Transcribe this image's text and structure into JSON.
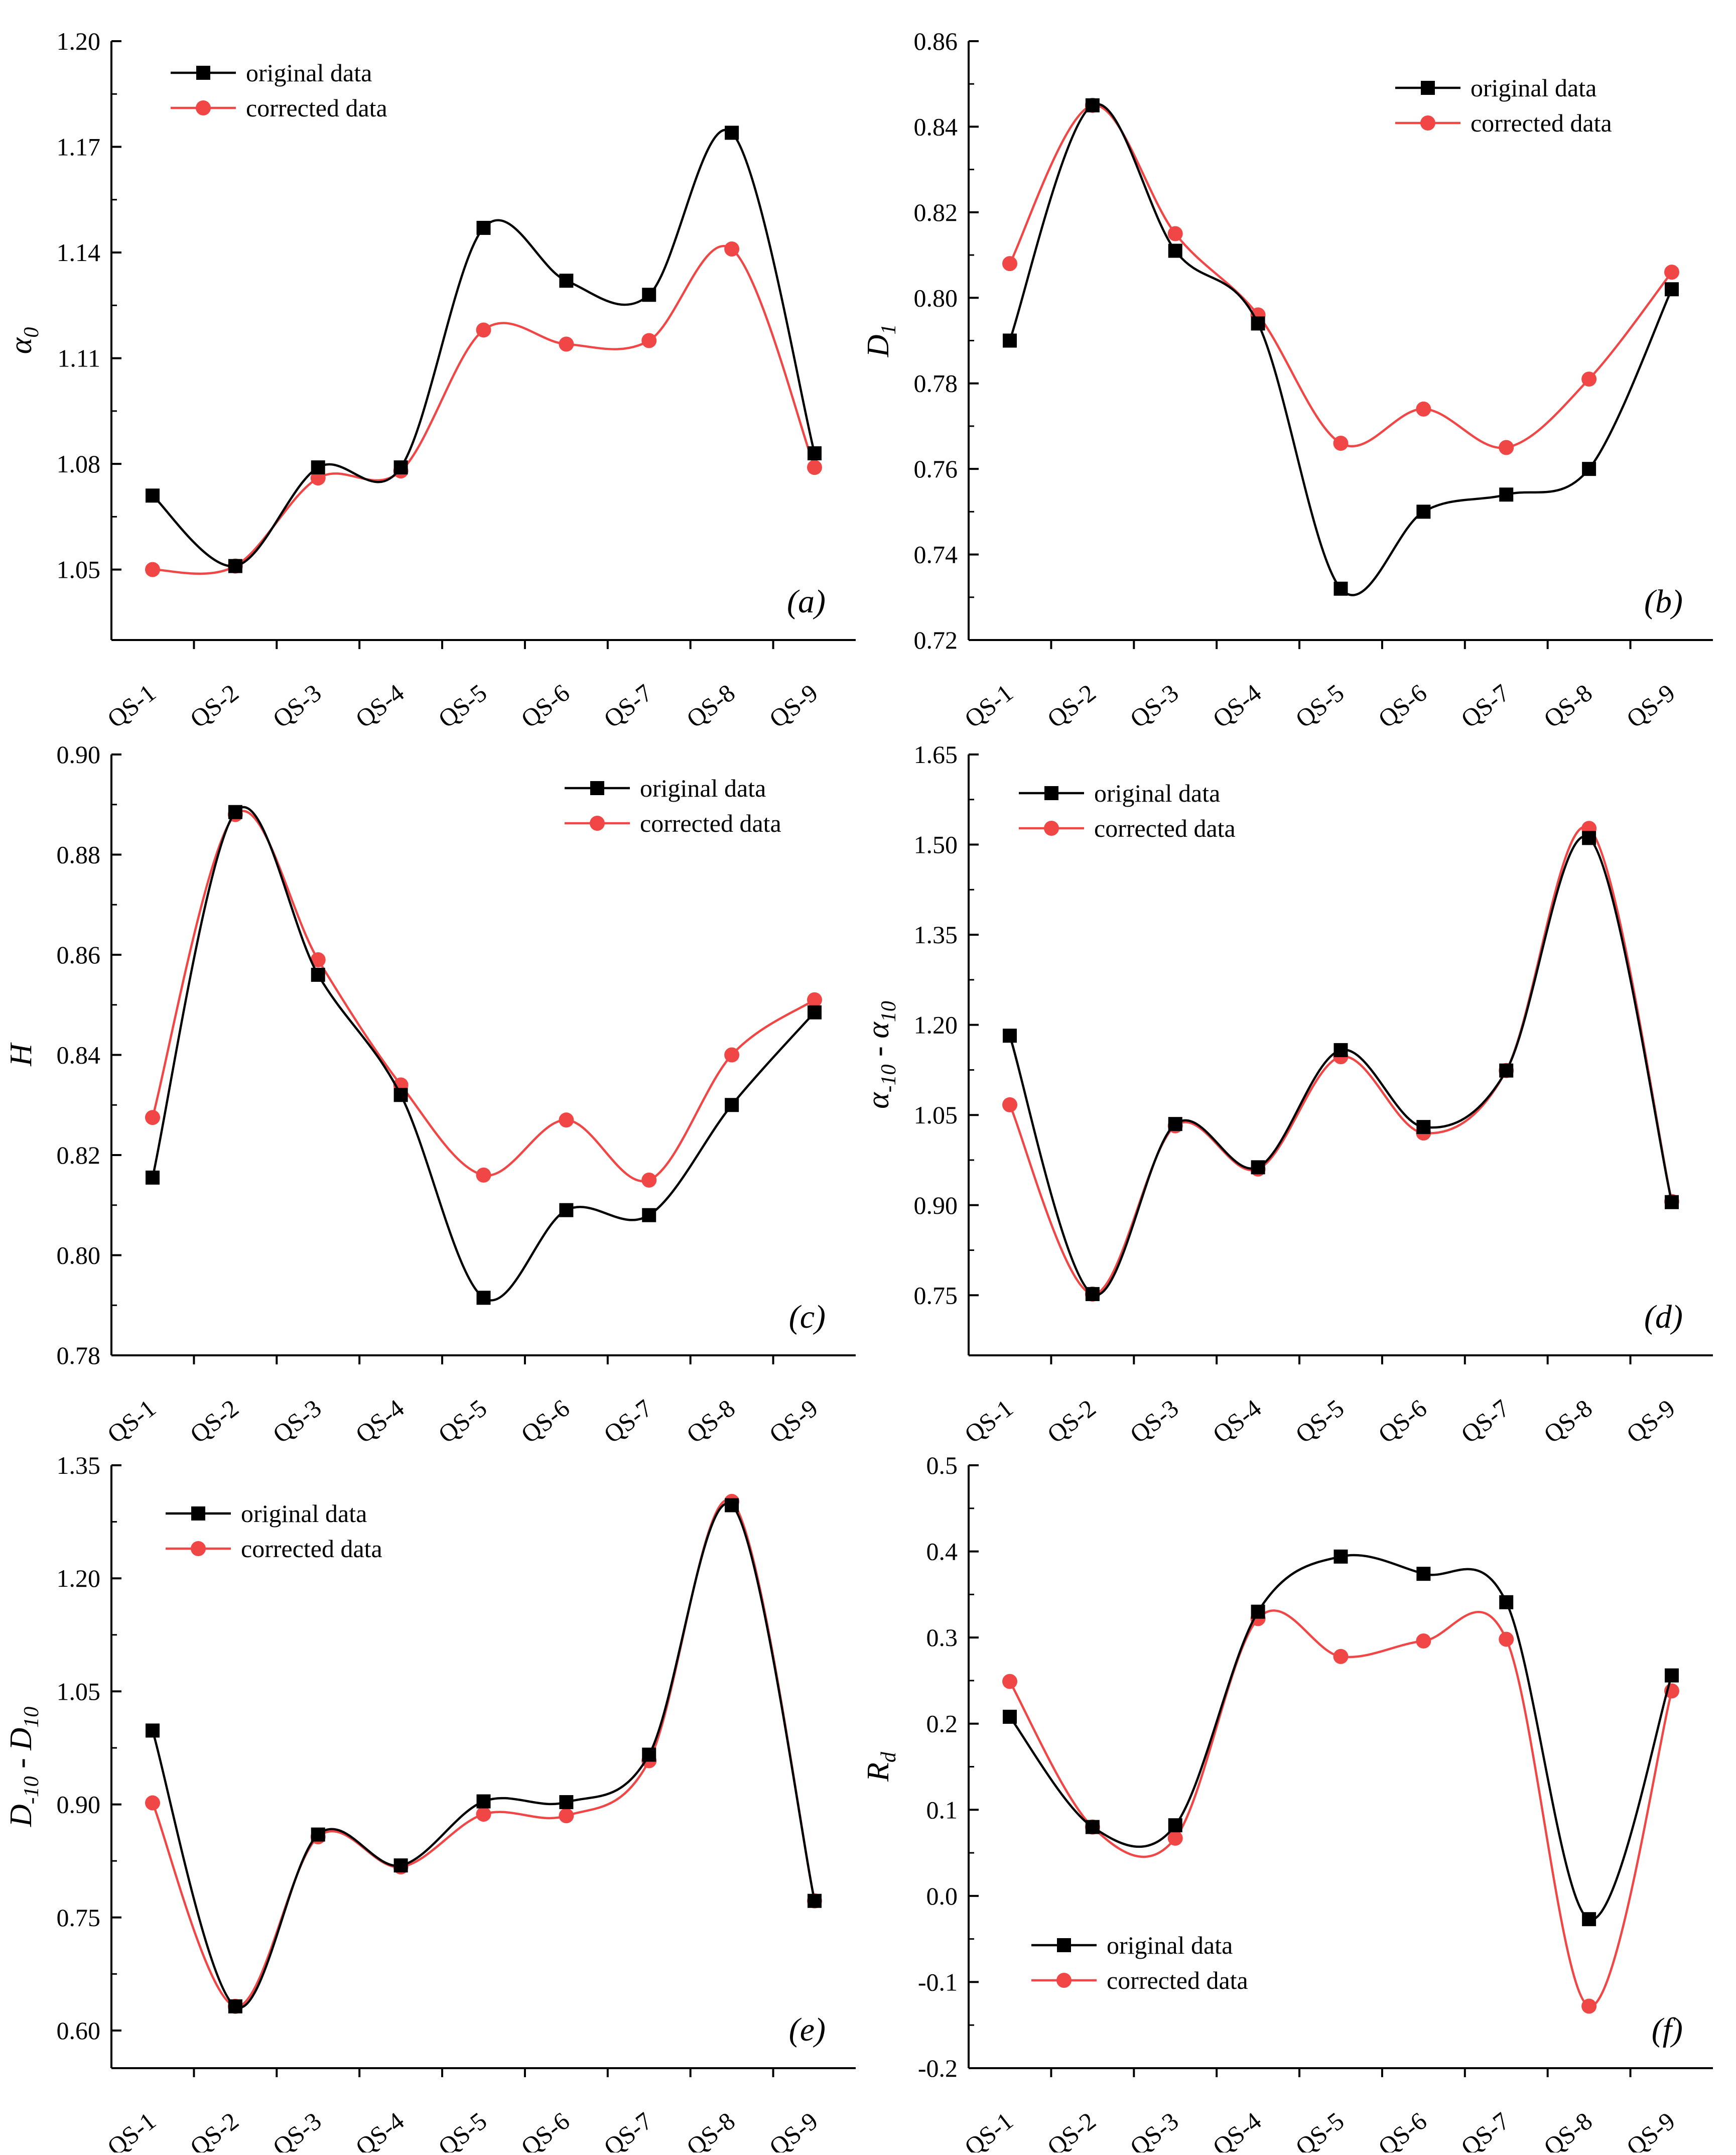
{
  "figure": {
    "legend_original": "original data",
    "legend_corrected": "corrected data",
    "colors": {
      "original": "#000000",
      "corrected": "#f04646"
    }
  },
  "chart_data": [
    {
      "id": "a",
      "type": "line",
      "panel_label": "(a)",
      "ylabel": "α0",
      "ylabel_main": "α",
      "ylabel_sub": "0",
      "categories": [
        "QS-1",
        "QS-2",
        "QS-3",
        "QS-4",
        "QS-5",
        "QS-6",
        "QS-7",
        "QS-8",
        "QS-9"
      ],
      "ylim": [
        1.03,
        1.2
      ],
      "yticks": [
        1.05,
        1.08,
        1.11,
        1.14,
        1.17,
        1.2
      ],
      "ytick_labels": [
        "1.05",
        "1.08",
        "1.11",
        "1.14",
        "1.17",
        "1.20"
      ],
      "legend_position": "top-left",
      "series": [
        {
          "name": "original data",
          "values": [
            1.071,
            1.051,
            1.079,
            1.079,
            1.147,
            1.132,
            1.128,
            1.174,
            1.083
          ]
        },
        {
          "name": "corrected data",
          "values": [
            1.05,
            1.051,
            1.076,
            1.078,
            1.118,
            1.114,
            1.115,
            1.141,
            1.079
          ]
        }
      ]
    },
    {
      "id": "b",
      "type": "line",
      "panel_label": "(b)",
      "ylabel": "D1",
      "ylabel_main": "D",
      "ylabel_sub": "1",
      "categories": [
        "QS-1",
        "QS-2",
        "QS-3",
        "QS-4",
        "QS-5",
        "QS-6",
        "QS-7",
        "QS-8",
        "QS-9"
      ],
      "ylim": [
        0.72,
        0.86
      ],
      "yticks": [
        0.72,
        0.74,
        0.76,
        0.78,
        0.8,
        0.82,
        0.84,
        0.86
      ],
      "ytick_labels": [
        "0.72",
        "0.74",
        "0.76",
        "0.78",
        "0.80",
        "0.82",
        "0.84",
        "0.86"
      ],
      "legend_position": "top-right",
      "series": [
        {
          "name": "original data",
          "values": [
            0.79,
            0.845,
            0.811,
            0.794,
            0.732,
            0.75,
            0.754,
            0.76,
            0.802
          ]
        },
        {
          "name": "corrected data",
          "values": [
            0.808,
            0.845,
            0.815,
            0.796,
            0.766,
            0.774,
            0.765,
            0.781,
            0.806
          ]
        }
      ]
    },
    {
      "id": "c",
      "type": "line",
      "panel_label": "(c)",
      "ylabel": "H",
      "ylabel_main": "H",
      "ylabel_sub": "",
      "categories": [
        "QS-1",
        "QS-2",
        "QS-3",
        "QS-4",
        "QS-5",
        "QS-6",
        "QS-7",
        "QS-8",
        "QS-9"
      ],
      "ylim": [
        0.78,
        0.9
      ],
      "yticks": [
        0.78,
        0.8,
        0.82,
        0.84,
        0.86,
        0.88,
        0.9
      ],
      "ytick_labels": [
        "0.78",
        "0.80",
        "0.82",
        "0.84",
        "0.86",
        "0.88",
        "0.90"
      ],
      "legend_position": "top-right",
      "series": [
        {
          "name": "original data",
          "values": [
            0.8155,
            0.8885,
            0.856,
            0.832,
            0.7915,
            0.809,
            0.808,
            0.83,
            0.8485
          ]
        },
        {
          "name": "corrected data",
          "values": [
            0.8275,
            0.888,
            0.859,
            0.834,
            0.816,
            0.827,
            0.815,
            0.84,
            0.851
          ]
        }
      ]
    },
    {
      "id": "d",
      "type": "line",
      "panel_label": "(d)",
      "ylabel": "α-10 - α10",
      "ylabel_main": "α",
      "ylabel_sub": "-10",
      "ylabel_mid": " - α",
      "ylabel_sub2": "10",
      "categories": [
        "QS-1",
        "QS-2",
        "QS-3",
        "QS-4",
        "QS-5",
        "QS-6",
        "QS-7",
        "QS-8",
        "QS-9"
      ],
      "ylim": [
        0.65,
        1.65
      ],
      "yticks": [
        0.75,
        0.9,
        1.05,
        1.2,
        1.35,
        1.5,
        1.65
      ],
      "ytick_labels": [
        "0.75",
        "0.90",
        "1.05",
        "1.20",
        "1.35",
        "1.50",
        "1.65"
      ],
      "legend_position": "top-left",
      "series": [
        {
          "name": "original data",
          "values": [
            1.182,
            0.752,
            1.035,
            0.963,
            1.158,
            1.03,
            1.124,
            1.511,
            0.905
          ]
        },
        {
          "name": "corrected data",
          "values": [
            1.067,
            0.752,
            1.032,
            0.96,
            1.147,
            1.02,
            1.124,
            1.527,
            0.906
          ]
        }
      ]
    },
    {
      "id": "e",
      "type": "line",
      "panel_label": "(e)",
      "ylabel": "D-10 - D10",
      "ylabel_main": "D",
      "ylabel_sub": "-10",
      "ylabel_mid": " - D",
      "ylabel_sub2": "10",
      "categories": [
        "QS-1",
        "QS-2",
        "QS-3",
        "QS-4",
        "QS-5",
        "QS-6",
        "QS-7",
        "QS-8",
        "QS-9"
      ],
      "ylim": [
        0.55,
        1.35
      ],
      "yticks": [
        0.6,
        0.75,
        0.9,
        1.05,
        1.2,
        1.35
      ],
      "ytick_labels": [
        "0.60",
        "0.75",
        "0.90",
        "1.05",
        "1.20",
        "1.35"
      ],
      "legend_position": "top-left",
      "series": [
        {
          "name": "original data",
          "values": [
            0.998,
            0.632,
            0.86,
            0.819,
            0.904,
            0.903,
            0.966,
            1.297,
            0.772
          ]
        },
        {
          "name": "corrected data",
          "values": [
            0.902,
            0.632,
            0.857,
            0.817,
            0.887,
            0.885,
            0.958,
            1.302,
            0.772
          ]
        }
      ]
    },
    {
      "id": "f",
      "type": "line",
      "panel_label": "(f)",
      "ylabel": "Rd",
      "ylabel_main": "R",
      "ylabel_sub": "d",
      "categories": [
        "QS-1",
        "QS-2",
        "QS-3",
        "QS-4",
        "QS-5",
        "QS-6",
        "QS-7",
        "QS-8",
        "QS-9"
      ],
      "ylim": [
        -0.2,
        0.5
      ],
      "yticks": [
        -0.2,
        -0.1,
        0.0,
        0.1,
        0.2,
        0.3,
        0.4,
        0.5
      ],
      "ytick_labels": [
        "-0.2",
        "-0.1",
        "0.0",
        "0.1",
        "0.2",
        "0.3",
        "0.4",
        "0.5"
      ],
      "legend_position": "bottom-left",
      "series": [
        {
          "name": "original data",
          "values": [
            0.208,
            0.08,
            0.082,
            0.33,
            0.394,
            0.374,
            0.341,
            -0.027,
            0.256
          ]
        },
        {
          "name": "corrected data",
          "values": [
            0.249,
            0.08,
            0.067,
            0.322,
            0.278,
            0.296,
            0.298,
            -0.128,
            0.238
          ]
        }
      ]
    }
  ]
}
